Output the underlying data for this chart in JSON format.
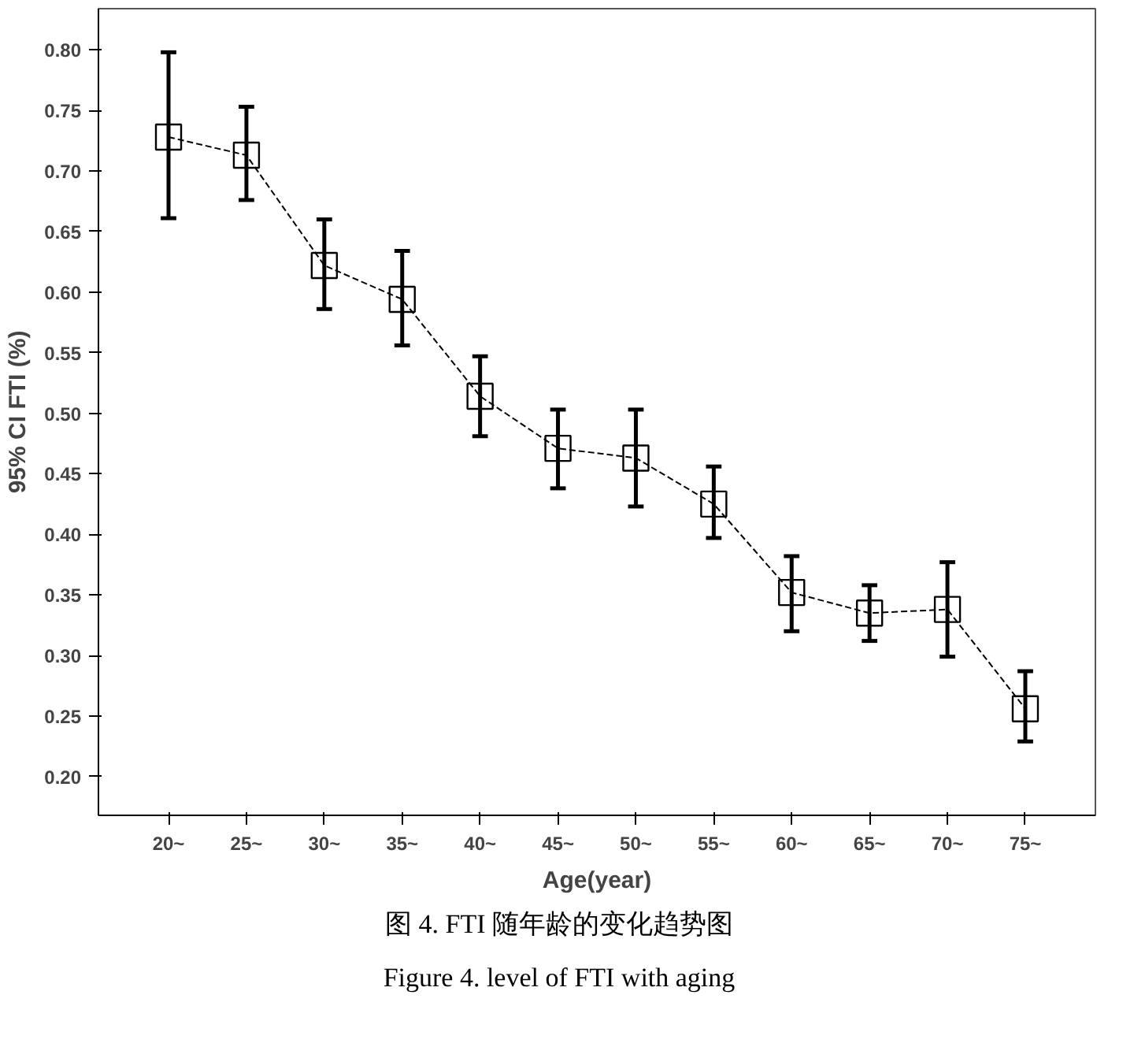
{
  "chart_data": {
    "type": "line",
    "xlabel": "Age(year)",
    "ylabel": "95% CI FTI (%)",
    "categories": [
      "20~",
      "25~",
      "30~",
      "35~",
      "40~",
      "45~",
      "50~",
      "55~",
      "60~",
      "65~",
      "70~",
      "75~"
    ],
    "series": [
      {
        "color": "#000000",
        "values": [
          0.728,
          0.713,
          0.622,
          0.594,
          0.514,
          0.471,
          0.463,
          0.425,
          0.352,
          0.335,
          0.338,
          0.256
        ],
        "errors": [
          [
            0.661,
            0.798
          ],
          [
            0.676,
            0.753
          ],
          [
            0.586,
            0.66
          ],
          [
            0.556,
            0.634
          ],
          [
            0.481,
            0.547
          ],
          [
            0.438,
            0.503
          ],
          [
            0.423,
            0.503
          ],
          [
            0.397,
            0.456
          ],
          [
            0.32,
            0.382
          ],
          [
            0.312,
            0.358
          ],
          [
            0.299,
            0.377
          ],
          [
            0.229,
            0.287
          ]
        ]
      }
    ],
    "ylim": [
      0.168,
      0.834
    ],
    "yticks": [
      {
        "value": 0.2,
        "label": "0.20"
      },
      0.25,
      {
        "value": 0.3,
        "label": "0.30"
      },
      0.35,
      {
        "value": 0.4,
        "label": "0.40"
      },
      0.45,
      {
        "value": 0.5,
        "label": "0.50"
      },
      0.55,
      {
        "value": 0.6,
        "label": "0.60"
      },
      0.65,
      {
        "value": 0.7,
        "label": "0.70"
      },
      0.75,
      {
        "value": 0.8,
        "label": "0.80"
      }
    ],
    "grid": false,
    "marker": "square",
    "line_style": "dashed",
    "annotations": [
      "图 4.  FTI 随年龄的变化趋势图",
      "Figure 4. level of FTI with aging"
    ]
  }
}
